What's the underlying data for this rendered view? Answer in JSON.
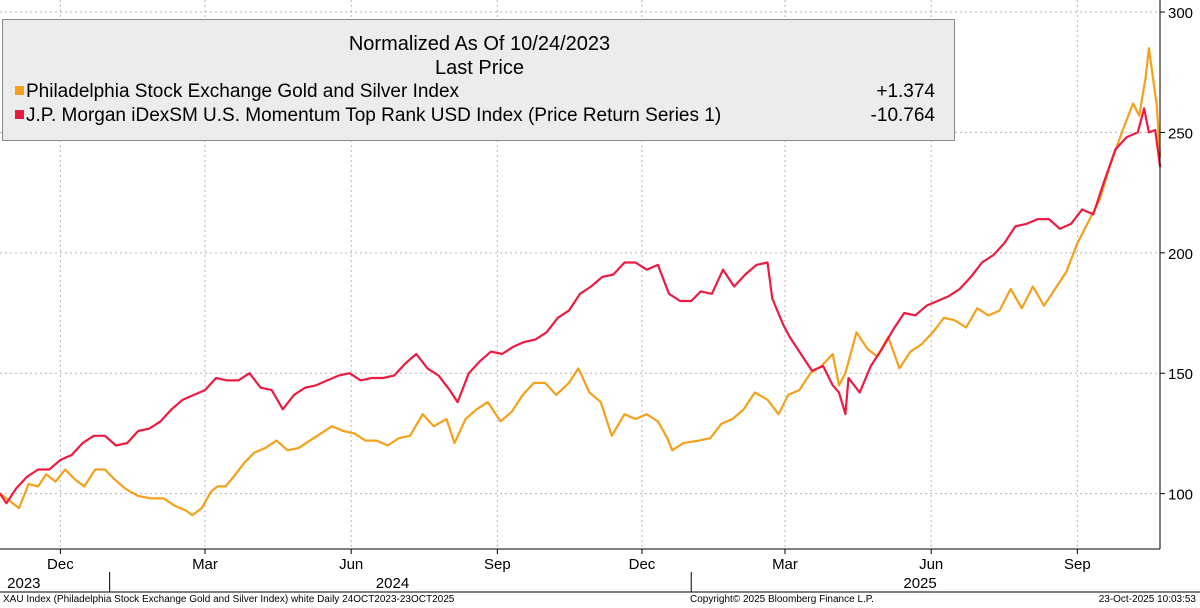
{
  "legend": {
    "title_line1": "Normalized As Of 10/24/2023",
    "title_line2": "Last Price",
    "series": [
      {
        "label": "Philadelphia Stock Exchange Gold and Silver Index",
        "value": "+1.374",
        "color": "#f5a01a"
      },
      {
        "label": "J.P. Morgan iDexSM U.S. Momentum Top Rank USD Index (Price Return Series 1)",
        "value": "-10.764",
        "color": "#ec1b3f"
      }
    ]
  },
  "footer": {
    "left": "XAU Index (Philadelphia Stock Exchange Gold and Silver Index) white Daily 24OCT2023-23OCT2025",
    "center": "Copyright© 2025 Bloomberg Finance L.P.",
    "right": "23-Oct-2025 10:03:53"
  },
  "chart_data": {
    "type": "line",
    "x_range": [
      "2023-10-24",
      "2025-10-23"
    ],
    "ylim": [
      77,
      305
    ],
    "y_ticks": [
      100,
      150,
      200,
      250,
      300
    ],
    "x_ticks": [
      {
        "date": "2023-12-01",
        "label": "Dec"
      },
      {
        "date": "2024-03-01",
        "label": "Mar"
      },
      {
        "date": "2024-06-01",
        "label": "Jun"
      },
      {
        "date": "2024-09-01",
        "label": "Sep"
      },
      {
        "date": "2024-12-01",
        "label": "Dec"
      },
      {
        "date": "2025-03-01",
        "label": "Mar"
      },
      {
        "date": "2025-06-01",
        "label": "Jun"
      },
      {
        "date": "2025-09-01",
        "label": "Sep"
      }
    ],
    "year_labels": [
      {
        "date": "2023-11-08",
        "label": "2023"
      },
      {
        "date": "2024-06-27",
        "label": "2024"
      },
      {
        "date": "2025-05-25",
        "label": "2025"
      }
    ],
    "year_dividers": [
      "2024-01-01",
      "2025-01-01"
    ],
    "grid": true,
    "legend_position": "top-left",
    "series": [
      {
        "name": "Philadelphia Stock Exchange Gold and Silver Index",
        "color": "#f5a01a",
        "points": [
          [
            "2023-10-24",
            100
          ],
          [
            "2023-10-30",
            97
          ],
          [
            "2023-11-05",
            94
          ],
          [
            "2023-11-11",
            104
          ],
          [
            "2023-11-17",
            103
          ],
          [
            "2023-11-22",
            108
          ],
          [
            "2023-11-28",
            105
          ],
          [
            "2023-12-04",
            110
          ],
          [
            "2023-12-10",
            106
          ],
          [
            "2023-12-16",
            103
          ],
          [
            "2023-12-23",
            110
          ],
          [
            "2023-12-29",
            110
          ],
          [
            "2024-01-04",
            106
          ],
          [
            "2024-01-11",
            102
          ],
          [
            "2024-01-19",
            99
          ],
          [
            "2024-01-27",
            98
          ],
          [
            "2024-02-04",
            98
          ],
          [
            "2024-02-11",
            95
          ],
          [
            "2024-02-18",
            93
          ],
          [
            "2024-02-22",
            91
          ],
          [
            "2024-02-28",
            94
          ],
          [
            "2024-03-05",
            101
          ],
          [
            "2024-03-09",
            103
          ],
          [
            "2024-03-14",
            103
          ],
          [
            "2024-03-19",
            107
          ],
          [
            "2024-03-26",
            113
          ],
          [
            "2024-04-01",
            117
          ],
          [
            "2024-04-08",
            119
          ],
          [
            "2024-04-15",
            122
          ],
          [
            "2024-04-22",
            118
          ],
          [
            "2024-04-29",
            119
          ],
          [
            "2024-05-06",
            122
          ],
          [
            "2024-05-13",
            125
          ],
          [
            "2024-05-20",
            128
          ],
          [
            "2024-05-27",
            126
          ],
          [
            "2024-06-03",
            125
          ],
          [
            "2024-06-10",
            122
          ],
          [
            "2024-06-17",
            122
          ],
          [
            "2024-06-24",
            120
          ],
          [
            "2024-07-01",
            123
          ],
          [
            "2024-07-08",
            124
          ],
          [
            "2024-07-16",
            133
          ],
          [
            "2024-07-23",
            128
          ],
          [
            "2024-07-31",
            131
          ],
          [
            "2024-08-05",
            121
          ],
          [
            "2024-08-12",
            131
          ],
          [
            "2024-08-19",
            135
          ],
          [
            "2024-08-26",
            138
          ],
          [
            "2024-09-03",
            130
          ],
          [
            "2024-09-10",
            134
          ],
          [
            "2024-09-17",
            141
          ],
          [
            "2024-09-24",
            146
          ],
          [
            "2024-10-01",
            146
          ],
          [
            "2024-10-08",
            141
          ],
          [
            "2024-10-16",
            146
          ],
          [
            "2024-10-22",
            152
          ],
          [
            "2024-10-29",
            142
          ],
          [
            "2024-11-05",
            138
          ],
          [
            "2024-11-12",
            124
          ],
          [
            "2024-11-20",
            133
          ],
          [
            "2024-11-27",
            131
          ],
          [
            "2024-12-04",
            133
          ],
          [
            "2024-12-11",
            130
          ],
          [
            "2024-12-17",
            123
          ],
          [
            "2024-12-20",
            118
          ],
          [
            "2024-12-27",
            121
          ],
          [
            "2025-01-06",
            122
          ],
          [
            "2025-01-13",
            123
          ],
          [
            "2025-01-20",
            129
          ],
          [
            "2025-01-27",
            131
          ],
          [
            "2025-02-03",
            135
          ],
          [
            "2025-02-10",
            142
          ],
          [
            "2025-02-18",
            139
          ],
          [
            "2025-02-25",
            133
          ],
          [
            "2025-03-03",
            141
          ],
          [
            "2025-03-10",
            143
          ],
          [
            "2025-03-17",
            150
          ],
          [
            "2025-03-24",
            153
          ],
          [
            "2025-03-31",
            158
          ],
          [
            "2025-04-04",
            145
          ],
          [
            "2025-04-08",
            150
          ],
          [
            "2025-04-15",
            167
          ],
          [
            "2025-04-22",
            160
          ],
          [
            "2025-04-28",
            157
          ],
          [
            "2025-05-05",
            165
          ],
          [
            "2025-05-12",
            152
          ],
          [
            "2025-05-19",
            159
          ],
          [
            "2025-05-26",
            162
          ],
          [
            "2025-06-02",
            167
          ],
          [
            "2025-06-09",
            173
          ],
          [
            "2025-06-16",
            172
          ],
          [
            "2025-06-23",
            169
          ],
          [
            "2025-06-30",
            177
          ],
          [
            "2025-07-07",
            174
          ],
          [
            "2025-07-14",
            176
          ],
          [
            "2025-07-21",
            185
          ],
          [
            "2025-07-28",
            177
          ],
          [
            "2025-08-04",
            186
          ],
          [
            "2025-08-11",
            178
          ],
          [
            "2025-08-18",
            185
          ],
          [
            "2025-08-25",
            192
          ],
          [
            "2025-09-01",
            204
          ],
          [
            "2025-09-08",
            213
          ],
          [
            "2025-09-15",
            222
          ],
          [
            "2025-09-22",
            237
          ],
          [
            "2025-09-29",
            250
          ],
          [
            "2025-10-06",
            262
          ],
          [
            "2025-10-10",
            257
          ],
          [
            "2025-10-14",
            273
          ],
          [
            "2025-10-16",
            285
          ],
          [
            "2025-10-21",
            261
          ],
          [
            "2025-10-23",
            240
          ]
        ]
      },
      {
        "name": "J.P. Morgan iDexSM U.S. Momentum Top Rank USD Index (Price Return Series 1)",
        "color": "#ec1b3f",
        "points": [
          [
            "2023-10-24",
            100
          ],
          [
            "2023-10-28",
            96
          ],
          [
            "2023-11-03",
            102
          ],
          [
            "2023-11-10",
            107
          ],
          [
            "2023-11-17",
            110
          ],
          [
            "2023-11-24",
            110
          ],
          [
            "2023-12-01",
            114
          ],
          [
            "2023-12-08",
            116
          ],
          [
            "2023-12-15",
            121
          ],
          [
            "2023-12-22",
            124
          ],
          [
            "2023-12-29",
            124
          ],
          [
            "2024-01-05",
            120
          ],
          [
            "2024-01-12",
            121
          ],
          [
            "2024-01-19",
            126
          ],
          [
            "2024-01-26",
            127
          ],
          [
            "2024-02-02",
            130
          ],
          [
            "2024-02-09",
            135
          ],
          [
            "2024-02-16",
            139
          ],
          [
            "2024-02-23",
            141
          ],
          [
            "2024-03-01",
            143
          ],
          [
            "2024-03-08",
            148
          ],
          [
            "2024-03-15",
            147
          ],
          [
            "2024-03-22",
            147
          ],
          [
            "2024-03-29",
            150
          ],
          [
            "2024-04-05",
            144
          ],
          [
            "2024-04-12",
            143
          ],
          [
            "2024-04-19",
            135
          ],
          [
            "2024-04-26",
            141
          ],
          [
            "2024-05-03",
            144
          ],
          [
            "2024-05-10",
            145
          ],
          [
            "2024-05-17",
            147
          ],
          [
            "2024-05-24",
            149
          ],
          [
            "2024-05-31",
            150
          ],
          [
            "2024-06-07",
            147
          ],
          [
            "2024-06-14",
            148
          ],
          [
            "2024-06-21",
            148
          ],
          [
            "2024-06-28",
            149
          ],
          [
            "2024-07-05",
            154
          ],
          [
            "2024-07-12",
            158
          ],
          [
            "2024-07-19",
            152
          ],
          [
            "2024-07-26",
            149
          ],
          [
            "2024-08-02",
            143
          ],
          [
            "2024-08-07",
            138
          ],
          [
            "2024-08-14",
            150
          ],
          [
            "2024-08-21",
            155
          ],
          [
            "2024-08-28",
            159
          ],
          [
            "2024-09-04",
            158
          ],
          [
            "2024-09-11",
            161
          ],
          [
            "2024-09-18",
            163
          ],
          [
            "2024-09-25",
            164
          ],
          [
            "2024-10-02",
            167
          ],
          [
            "2024-10-09",
            173
          ],
          [
            "2024-10-16",
            176
          ],
          [
            "2024-10-23",
            183
          ],
          [
            "2024-10-30",
            186
          ],
          [
            "2024-11-06",
            190
          ],
          [
            "2024-11-13",
            191
          ],
          [
            "2024-11-20",
            196
          ],
          [
            "2024-11-27",
            196
          ],
          [
            "2024-12-04",
            193
          ],
          [
            "2024-12-11",
            195
          ],
          [
            "2024-12-18",
            183
          ],
          [
            "2024-12-25",
            180
          ],
          [
            "2025-01-01",
            180
          ],
          [
            "2025-01-07",
            184
          ],
          [
            "2025-01-14",
            183
          ],
          [
            "2025-01-21",
            193
          ],
          [
            "2025-01-28",
            186
          ],
          [
            "2025-02-04",
            191
          ],
          [
            "2025-02-11",
            195
          ],
          [
            "2025-02-18",
            196
          ],
          [
            "2025-02-21",
            181
          ],
          [
            "2025-02-28",
            170
          ],
          [
            "2025-03-04",
            165
          ],
          [
            "2025-03-11",
            158
          ],
          [
            "2025-03-18",
            151
          ],
          [
            "2025-03-25",
            153
          ],
          [
            "2025-03-31",
            145
          ],
          [
            "2025-04-04",
            142
          ],
          [
            "2025-04-08",
            133
          ],
          [
            "2025-04-10",
            148
          ],
          [
            "2025-04-17",
            142
          ],
          [
            "2025-04-24",
            153
          ],
          [
            "2025-05-01",
            160
          ],
          [
            "2025-05-08",
            168
          ],
          [
            "2025-05-15",
            175
          ],
          [
            "2025-05-22",
            174
          ],
          [
            "2025-05-29",
            178
          ],
          [
            "2025-06-05",
            180
          ],
          [
            "2025-06-12",
            182
          ],
          [
            "2025-06-19",
            185
          ],
          [
            "2025-06-26",
            190
          ],
          [
            "2025-07-03",
            196
          ],
          [
            "2025-07-10",
            199
          ],
          [
            "2025-07-17",
            204
          ],
          [
            "2025-07-24",
            211
          ],
          [
            "2025-07-31",
            212
          ],
          [
            "2025-08-07",
            214
          ],
          [
            "2025-08-14",
            214
          ],
          [
            "2025-08-21",
            210
          ],
          [
            "2025-08-28",
            212
          ],
          [
            "2025-09-04",
            218
          ],
          [
            "2025-09-11",
            216
          ],
          [
            "2025-09-18",
            230
          ],
          [
            "2025-09-25",
            243
          ],
          [
            "2025-10-02",
            248
          ],
          [
            "2025-10-09",
            250
          ],
          [
            "2025-10-13",
            260
          ],
          [
            "2025-10-16",
            250
          ],
          [
            "2025-10-20",
            251
          ],
          [
            "2025-10-23",
            236
          ]
        ]
      }
    ]
  }
}
